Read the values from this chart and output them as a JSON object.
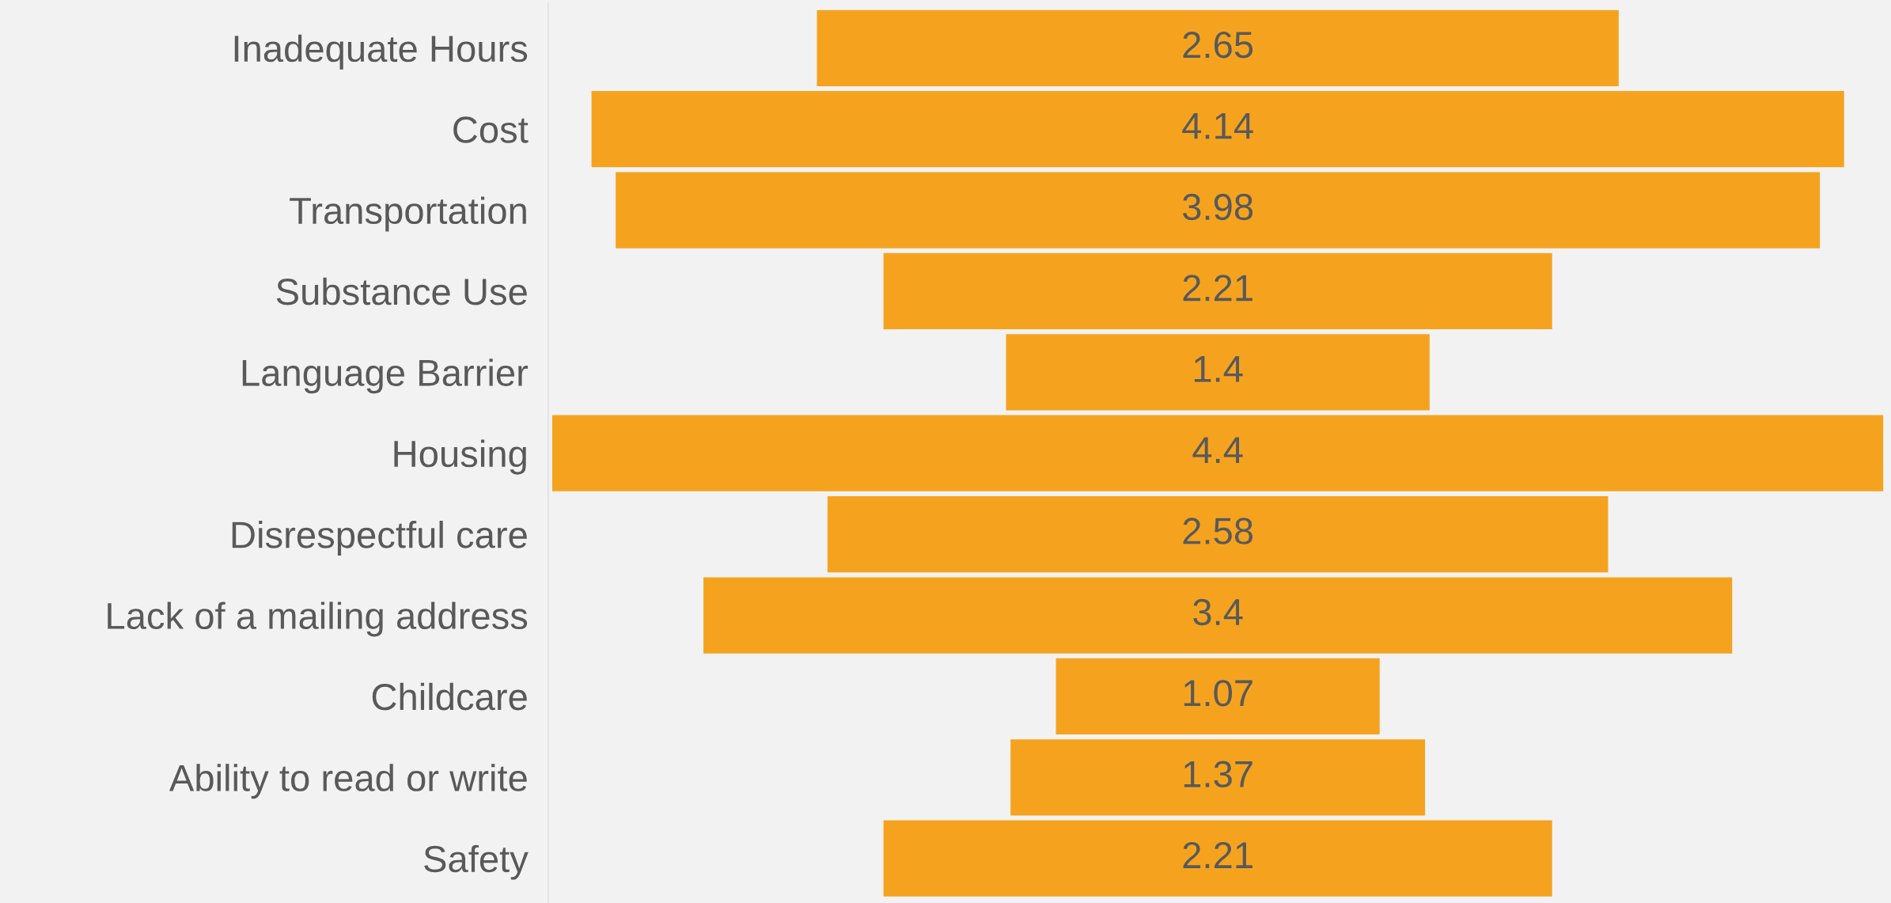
{
  "chart_data": {
    "type": "other",
    "categories": [
      "Inadequate Hours",
      "Cost",
      "Transportation",
      "Substance Use",
      "Language Barrier",
      "Housing",
      "Disrespectful care",
      "Lack of a mailing address",
      "Childcare",
      "Ability to read or write",
      "Safety"
    ],
    "values": [
      2.65,
      4.14,
      3.98,
      2.21,
      1.4,
      4.4,
      2.58,
      3.4,
      1.07,
      1.37,
      2.21
    ],
    "color": "#f5a31f",
    "data_labels": true
  }
}
